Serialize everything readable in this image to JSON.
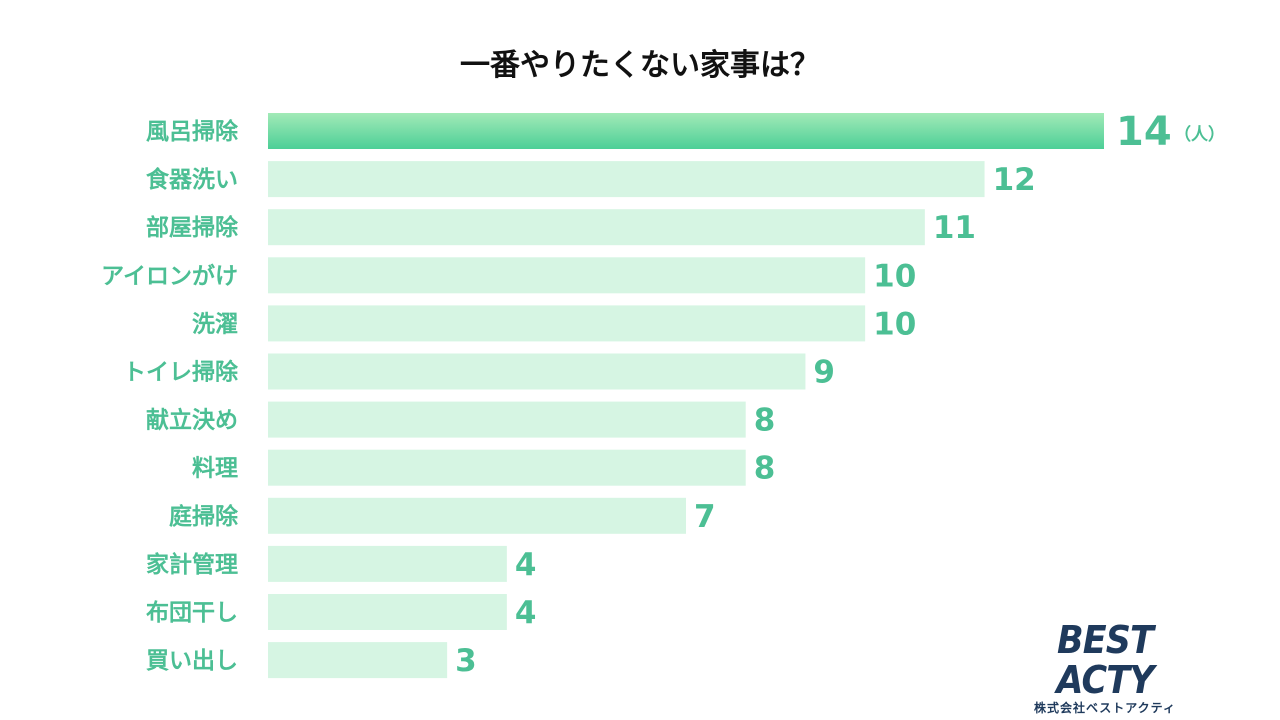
{
  "chart_data": {
    "type": "bar",
    "orientation": "horizontal",
    "title": "一番やりたくない家事は？",
    "unit": "（人）",
    "categories": [
      "風呂掃除",
      "食器洗い",
      "部屋掃除",
      "アイロンがけ",
      "洗濯",
      "トイレ掃除",
      "献立決め",
      "料理",
      "庭掃除",
      "家計管理",
      "布団干し",
      "買い出し"
    ],
    "values": [
      14,
      12,
      11,
      10,
      10,
      9,
      8,
      8,
      7,
      4,
      4,
      3
    ],
    "highlight_index": 0,
    "xlim": [
      0,
      14
    ],
    "grid": false,
    "legend": "none"
  },
  "colors": {
    "bar": "#d6f5e3",
    "bar_highlight_top": "#a2eab7",
    "bar_highlight_bottom": "#4ccf97",
    "value_text": "#4cbf94",
    "category_text": "#4cbf94",
    "title_text": "#111111",
    "logo": "#1f3a5c"
  },
  "logo": {
    "name": "BEST ACTY",
    "company": "株式会社ベストアクティ"
  }
}
